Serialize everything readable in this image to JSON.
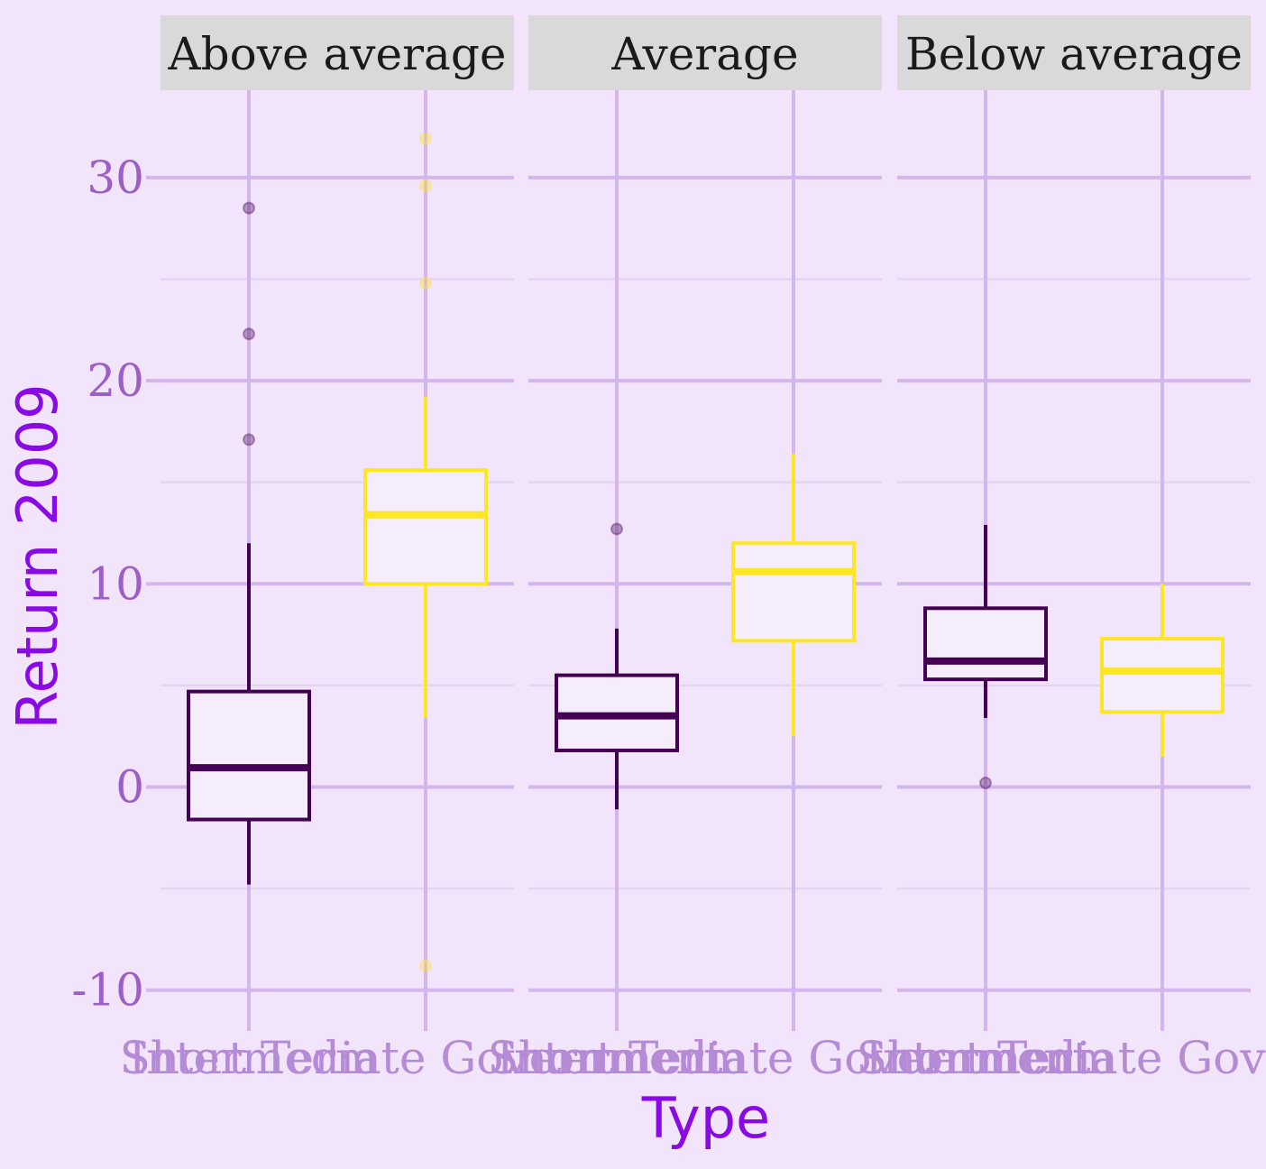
{
  "chart_data": {
    "type": "boxplot",
    "xlabel": "Type",
    "ylabel": "Return 2009",
    "ylim": [
      -11.3,
      34.3
    ],
    "yticks": [
      -10,
      0,
      10,
      20,
      30
    ],
    "ytick_labels": [
      "-10",
      "0",
      "10",
      "20",
      "30"
    ],
    "grid": true,
    "legend": "none",
    "categories": [
      "Short Term",
      "Intermediate Government"
    ],
    "category_colors": [
      "#440154",
      "#fde725"
    ],
    "facets": [
      {
        "label": "Above average",
        "boxes": [
          {
            "category": "Short Term",
            "lower": -4.8,
            "q1": -1.6,
            "median": 0.95,
            "q3": 4.7,
            "upper": 12.0,
            "outliers": [
              17.1,
              22.3,
              28.5
            ]
          },
          {
            "category": "Intermediate Government",
            "lower": 3.4,
            "q1": 10.0,
            "median": 13.4,
            "q3": 15.6,
            "upper": 19.2,
            "outliers": [
              31.9,
              29.6,
              24.8,
              -8.8
            ]
          }
        ]
      },
      {
        "label": "Average",
        "boxes": [
          {
            "category": "Short Term",
            "lower": -1.1,
            "q1": 1.8,
            "median": 3.5,
            "q3": 5.5,
            "upper": 7.8,
            "outliers": [
              12.7
            ]
          },
          {
            "category": "Intermediate Government",
            "lower": 2.5,
            "q1": 7.2,
            "median": 10.6,
            "q3": 12.0,
            "upper": 16.4,
            "outliers": []
          }
        ]
      },
      {
        "label": "Below average",
        "boxes": [
          {
            "category": "Short Term",
            "lower": 3.4,
            "q1": 5.3,
            "median": 6.2,
            "q3": 8.8,
            "upper": 12.9,
            "outliers": [
              0.2
            ]
          },
          {
            "category": "Intermediate Government",
            "lower": 1.5,
            "q1": 3.7,
            "median": 5.7,
            "q3": 7.3,
            "upper": 10.0,
            "outliers": []
          }
        ]
      }
    ]
  }
}
